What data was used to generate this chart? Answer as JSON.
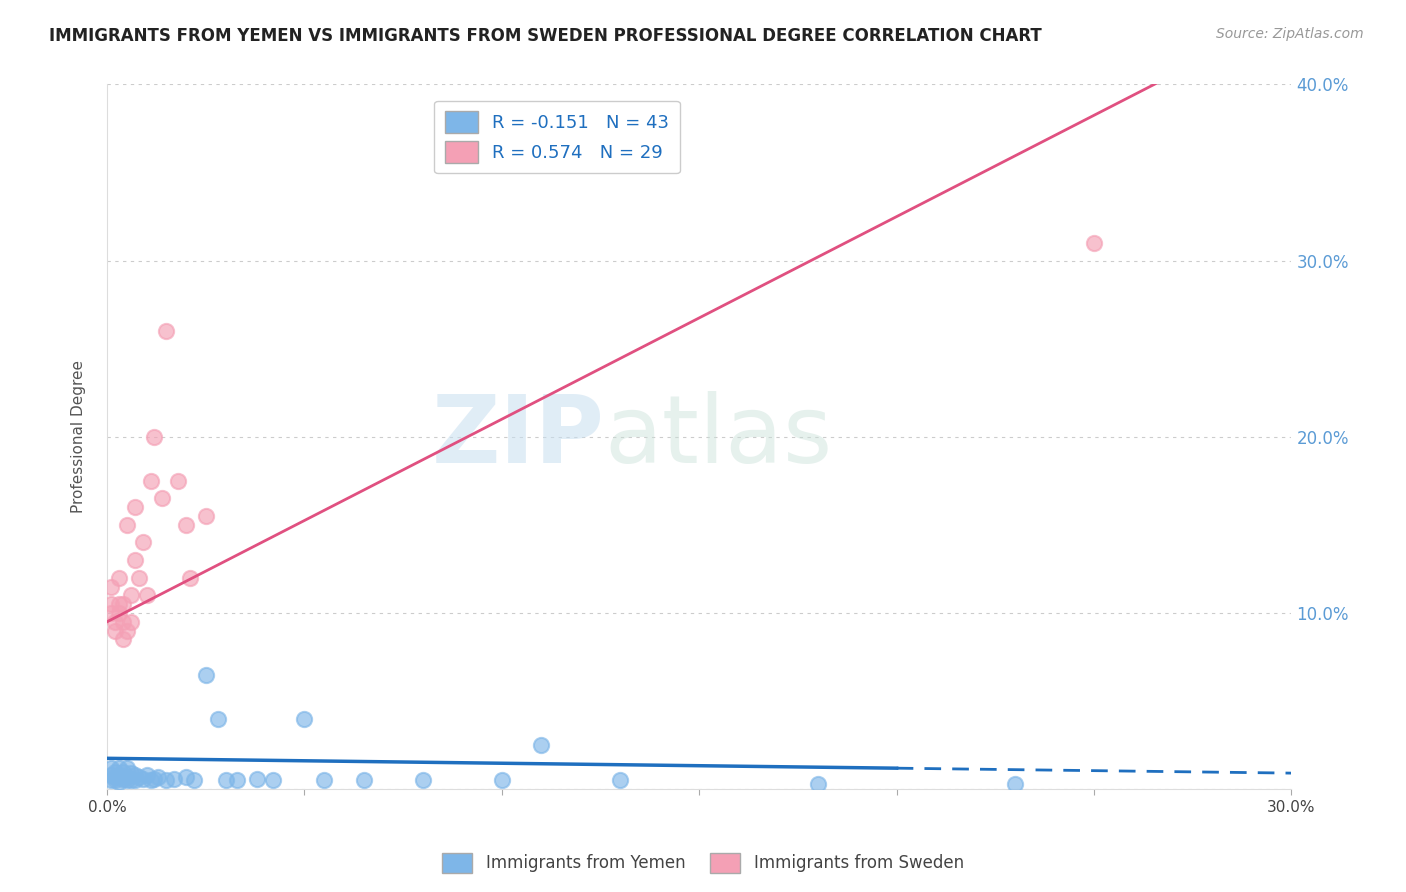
{
  "title": "IMMIGRANTS FROM YEMEN VS IMMIGRANTS FROM SWEDEN PROFESSIONAL DEGREE CORRELATION CHART",
  "source": "Source: ZipAtlas.com",
  "ylabel": "Professional Degree",
  "watermark_zip": "ZIP",
  "watermark_atlas": "atlas",
  "legend_labels": [
    "Immigrants from Yemen",
    "Immigrants from Sweden"
  ],
  "R_yemen": -0.151,
  "N_yemen": 43,
  "R_sweden": 0.574,
  "N_sweden": 29,
  "xlim": [
    0.0,
    0.3
  ],
  "ylim": [
    0.0,
    0.4
  ],
  "yticks": [
    0.0,
    0.1,
    0.2,
    0.3,
    0.4
  ],
  "ytick_labels": [
    "",
    "10.0%",
    "20.0%",
    "30.0%",
    "40.0%"
  ],
  "color_yemen": "#7EB6E8",
  "color_sweden": "#F4A0B5",
  "line_color_yemen": "#1F6FBF",
  "line_color_sweden": "#E05080",
  "scatter_alpha": 0.65,
  "scatter_size": 120,
  "yemen_x": [
    0.001,
    0.001,
    0.001,
    0.002,
    0.002,
    0.002,
    0.003,
    0.003,
    0.003,
    0.004,
    0.004,
    0.005,
    0.005,
    0.005,
    0.006,
    0.006,
    0.007,
    0.007,
    0.008,
    0.009,
    0.01,
    0.011,
    0.012,
    0.013,
    0.015,
    0.017,
    0.02,
    0.022,
    0.025,
    0.028,
    0.03,
    0.033,
    0.038,
    0.042,
    0.05,
    0.055,
    0.065,
    0.08,
    0.1,
    0.11,
    0.13,
    0.18,
    0.23
  ],
  "yemen_y": [
    0.005,
    0.008,
    0.012,
    0.005,
    0.007,
    0.01,
    0.004,
    0.008,
    0.012,
    0.006,
    0.01,
    0.005,
    0.007,
    0.012,
    0.005,
    0.009,
    0.005,
    0.008,
    0.007,
    0.006,
    0.008,
    0.005,
    0.006,
    0.007,
    0.005,
    0.006,
    0.007,
    0.005,
    0.065,
    0.04,
    0.005,
    0.005,
    0.006,
    0.005,
    0.04,
    0.005,
    0.005,
    0.005,
    0.005,
    0.025,
    0.005,
    0.003,
    0.003
  ],
  "sweden_x": [
    0.001,
    0.001,
    0.001,
    0.002,
    0.002,
    0.003,
    0.003,
    0.003,
    0.004,
    0.004,
    0.004,
    0.005,
    0.005,
    0.006,
    0.006,
    0.007,
    0.007,
    0.008,
    0.009,
    0.01,
    0.011,
    0.012,
    0.014,
    0.015,
    0.018,
    0.02,
    0.021,
    0.025,
    0.25
  ],
  "sweden_y": [
    0.1,
    0.105,
    0.115,
    0.09,
    0.095,
    0.1,
    0.105,
    0.12,
    0.085,
    0.095,
    0.105,
    0.09,
    0.15,
    0.095,
    0.11,
    0.13,
    0.16,
    0.12,
    0.14,
    0.11,
    0.175,
    0.2,
    0.165,
    0.26,
    0.175,
    0.15,
    0.12,
    0.155,
    0.31
  ],
  "background_color": "#FFFFFF",
  "grid_color": "#CCCCCC",
  "sweden_line_intercept": 0.095,
  "sweden_line_slope": 1.15,
  "yemen_line_intercept": 0.0175,
  "yemen_line_slope": -0.028
}
